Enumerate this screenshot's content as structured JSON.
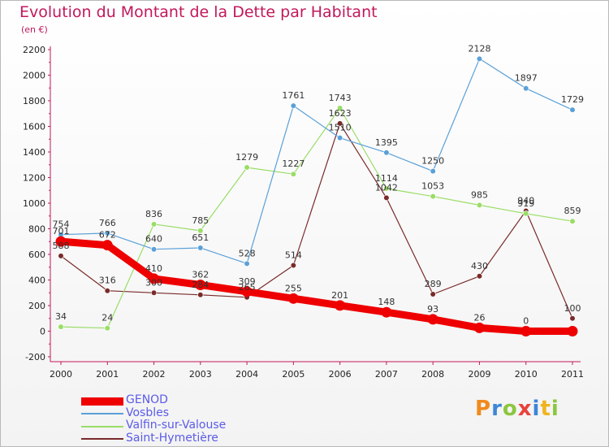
{
  "title": "Evolution du Montant de la Dette par Habitant",
  "unit_label": "(en €)",
  "logo": {
    "text": "Proxiti",
    "letters": [
      {
        "ch": "P",
        "color": "#f08a1c"
      },
      {
        "ch": "r",
        "color": "#3e86d6"
      },
      {
        "ch": "o",
        "color": "#8cc63f"
      },
      {
        "ch": "x",
        "color": "#e9413b"
      },
      {
        "ch": "i",
        "color": "#3e86d6"
      },
      {
        "ch": "t",
        "color": "#f0b41c"
      },
      {
        "ch": "i",
        "color": "#8cc63f"
      }
    ]
  },
  "chart_data": {
    "type": "line",
    "x": [
      "2000",
      "2001",
      "2002",
      "2003",
      "2004",
      "2005",
      "2006",
      "2007",
      "2008",
      "2009",
      "2010",
      "2011"
    ],
    "ylim": [
      -200,
      2200
    ],
    "yticks": [
      -200,
      0,
      200,
      400,
      600,
      800,
      1000,
      1200,
      1400,
      1600,
      1800,
      2000,
      2200
    ],
    "grid": false,
    "legend_position": "bottom-left",
    "series": [
      {
        "name": "GENOD",
        "color": "#ee0000",
        "values": [
          701,
          672,
          410,
          362,
          309,
          255,
          201,
          148,
          93,
          26,
          0,
          0
        ],
        "labels": [
          "701",
          "672",
          "410",
          "362",
          "309",
          "255",
          "201",
          "148",
          "93",
          "26",
          "0",
          ""
        ]
      },
      {
        "name": "Vosbles",
        "color": "#5aa0d8",
        "values": [
          754,
          766,
          640,
          651,
          528,
          1761,
          1510,
          1395,
          1250,
          2128,
          1897,
          1729
        ],
        "labels": [
          "754",
          "766",
          "640",
          "651",
          "528",
          "1761",
          "1510",
          "1395",
          "1250",
          "2128",
          "1897",
          "1729"
        ]
      },
      {
        "name": "Valfin-sur-Valouse",
        "color": "#99dd66",
        "values": [
          34,
          24,
          836,
          785,
          1279,
          1227,
          1743,
          1114,
          1053,
          985,
          919,
          859
        ],
        "labels": [
          "34",
          "24",
          "836",
          "785",
          "1279",
          "1227",
          "1743",
          "1114",
          "1053",
          "985",
          "919",
          "859"
        ]
      },
      {
        "name": "Saint-Hymetière",
        "color": "#7a2a2a",
        "values": [
          588,
          316,
          300,
          284,
          265,
          514,
          1623,
          1042,
          289,
          430,
          940,
          100
        ],
        "labels": [
          "588",
          "316",
          "300",
          "284",
          "265",
          "514",
          "1623",
          "1042",
          "289",
          "430",
          "940",
          "100"
        ]
      }
    ]
  }
}
